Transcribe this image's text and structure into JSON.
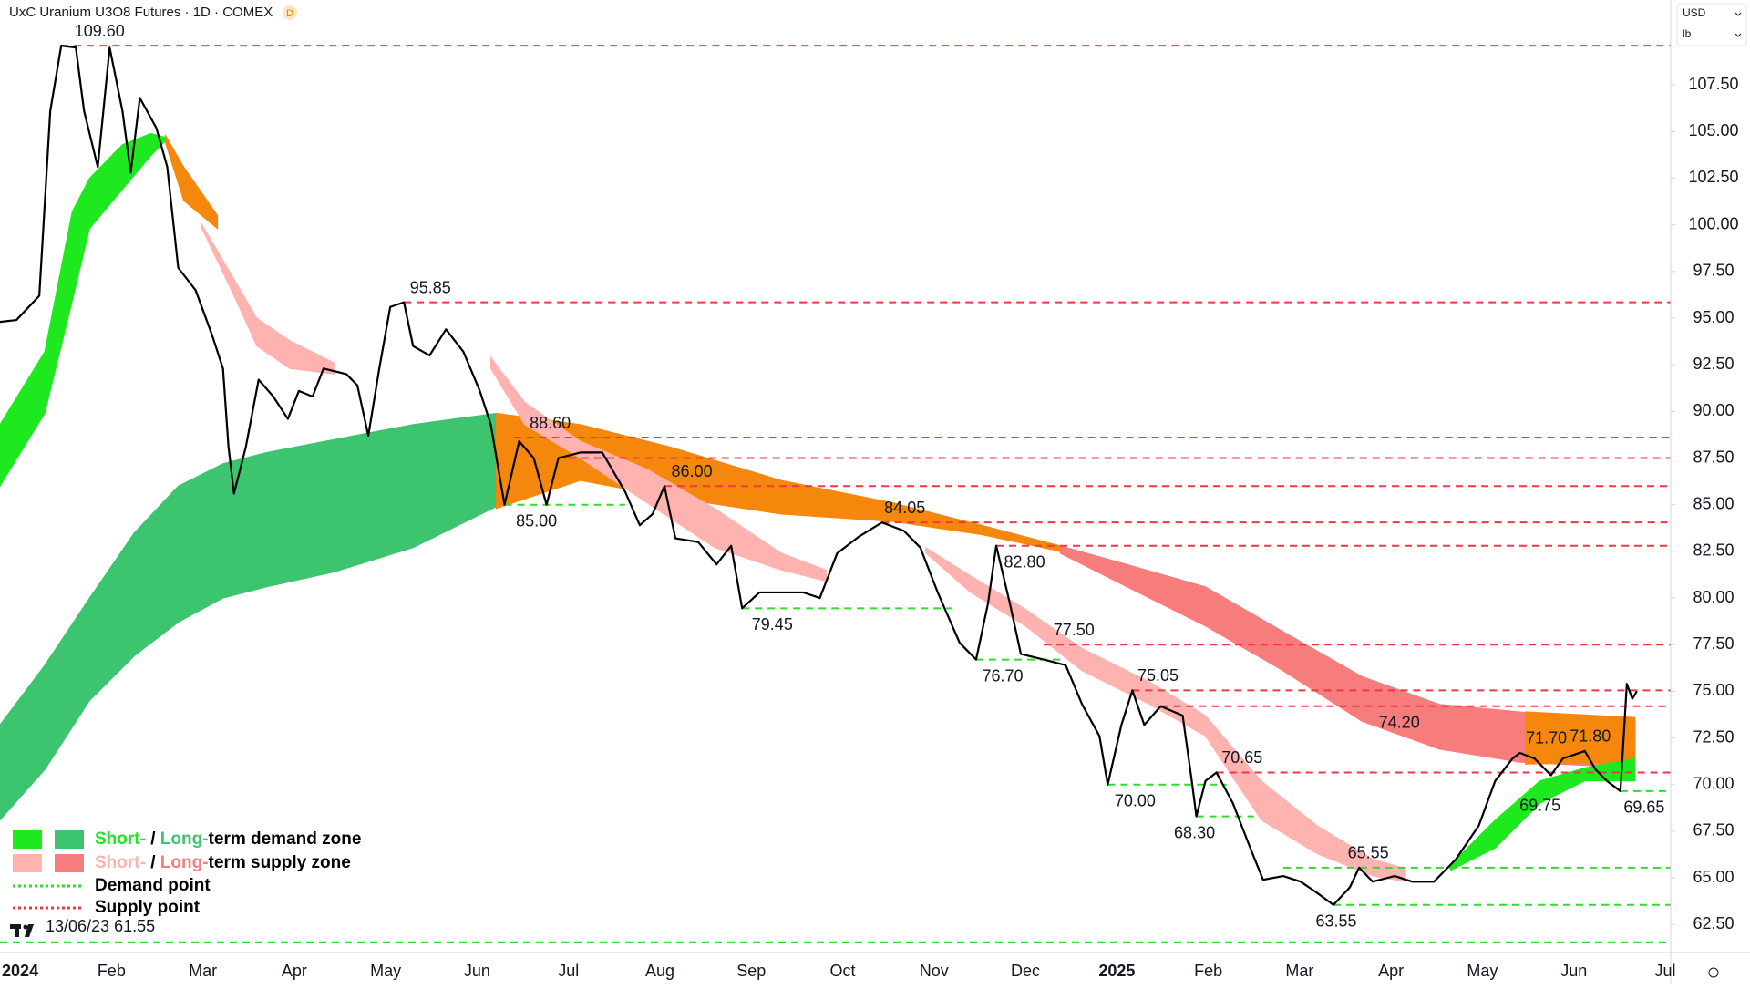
{
  "chart_data": {
    "type": "line",
    "title": "UxC Uranium U3O8 Futures · 1D · COMEX",
    "badge": "D",
    "currency": "USD",
    "unit": "lb",
    "xlim": [
      -0.22,
      18.06
    ],
    "xticks": [
      {
        "value": 0,
        "label": "2024"
      },
      {
        "value": 1,
        "label": "Feb"
      },
      {
        "value": 2,
        "label": "Mar"
      },
      {
        "value": 3,
        "label": "Apr"
      },
      {
        "value": 4,
        "label": "May"
      },
      {
        "value": 5,
        "label": "Jun"
      },
      {
        "value": 6,
        "label": "Jul"
      },
      {
        "value": 7,
        "label": "Aug"
      },
      {
        "value": 8,
        "label": "Sep"
      },
      {
        "value": 9,
        "label": "Oct"
      },
      {
        "value": 10,
        "label": "Nov"
      },
      {
        "value": 11,
        "label": "Dec"
      },
      {
        "value": 12,
        "label": "2025"
      },
      {
        "value": 13,
        "label": "Feb"
      },
      {
        "value": 14,
        "label": "Mar"
      },
      {
        "value": 15,
        "label": "Apr"
      },
      {
        "value": 16,
        "label": "May"
      },
      {
        "value": 17,
        "label": "Jun"
      },
      {
        "value": 18,
        "label": "Jul"
      }
    ],
    "ylim": [
      61.0,
      112.05
    ],
    "yticks": [
      {
        "value": 62.5,
        "label": "62.50"
      },
      {
        "value": 65,
        "label": "65.00"
      },
      {
        "value": 67.5,
        "label": "67.50"
      },
      {
        "value": 70,
        "label": "70.00"
      },
      {
        "value": 72.5,
        "label": "72.50"
      },
      {
        "value": 75,
        "label": "75.00"
      },
      {
        "value": 77.5,
        "label": "77.50"
      },
      {
        "value": 80,
        "label": "80.00"
      },
      {
        "value": 82.5,
        "label": "82.50"
      },
      {
        "value": 85,
        "label": "85.00"
      },
      {
        "value": 87.5,
        "label": "87.50"
      },
      {
        "value": 90,
        "label": "90.00"
      },
      {
        "value": 92.5,
        "label": "92.50"
      },
      {
        "value": 95,
        "label": "95.00"
      },
      {
        "value": 97.5,
        "label": "97.50"
      },
      {
        "value": 100,
        "label": "100.00"
      },
      {
        "value": 102.5,
        "label": "102.50"
      },
      {
        "value": 105,
        "label": "105.00"
      },
      {
        "value": 107.5,
        "label": "107.50"
      }
    ],
    "series": [
      {
        "color": "#000000",
        "x": [
          -0.22,
          -0.04,
          0.21,
          0.33,
          0.45,
          0.61,
          0.7,
          0.85,
          0.98,
          1.12,
          1.21,
          1.31,
          1.49,
          1.61,
          1.73,
          1.92,
          2.1,
          2.22,
          2.28,
          2.34,
          2.47,
          2.61,
          2.77,
          2.93,
          3.05,
          3.2,
          3.32,
          3.57,
          3.69,
          3.81,
          3.93,
          4.05,
          4.2,
          4.3,
          4.48,
          4.66,
          4.85,
          5.03,
          5.15,
          5.3,
          5.46,
          5.62,
          5.76,
          5.89,
          6.13,
          6.37,
          6.62,
          6.78,
          6.92,
          7.05,
          7.17,
          7.42,
          7.62,
          7.78,
          7.9,
          8.09,
          8.33,
          8.57,
          8.75,
          8.94,
          9.18,
          9.43,
          9.67,
          9.85,
          10.04,
          10.28,
          10.46,
          10.59,
          10.68,
          10.83,
          10.95,
          11.2,
          11.44,
          11.62,
          11.81,
          11.9,
          12.05,
          12.17,
          12.3,
          12.48,
          12.72,
          12.82,
          12.87,
          12.97,
          13.09,
          13.27,
          13.46,
          13.6,
          13.82,
          14.01,
          14.19,
          14.37,
          14.55,
          14.65,
          14.8,
          15.04,
          15.23,
          15.47,
          15.71,
          15.96,
          16.14,
          16.33,
          16.41,
          16.57,
          16.75,
          16.88,
          17.12,
          17.24,
          17.36,
          17.51,
          17.58,
          17.64,
          17.69
        ],
        "values": [
          94.8,
          94.9,
          96.2,
          106.1,
          109.6,
          109.5,
          106.1,
          103.1,
          109.5,
          106.1,
          102.8,
          106.8,
          105.2,
          103.1,
          97.7,
          96.5,
          94.1,
          92.3,
          88.1,
          85.6,
          88.1,
          91.7,
          90.8,
          89.6,
          91.1,
          90.8,
          92.3,
          92.0,
          91.4,
          88.7,
          92.3,
          95.6,
          95.85,
          93.5,
          93.0,
          94.4,
          93.2,
          91.1,
          89.3,
          85.0,
          88.4,
          87.5,
          85.0,
          87.5,
          87.8,
          87.8,
          85.7,
          83.9,
          84.5,
          86.0,
          83.2,
          83.0,
          81.8,
          82.8,
          79.45,
          80.3,
          80.3,
          80.3,
          80.0,
          82.4,
          83.3,
          84.05,
          83.6,
          82.7,
          80.3,
          77.6,
          76.7,
          79.7,
          82.8,
          79.7,
          77.0,
          76.7,
          76.4,
          74.3,
          72.6,
          70.0,
          73.2,
          75.05,
          73.2,
          74.2,
          73.7,
          70.2,
          68.3,
          70.2,
          70.65,
          69.0,
          66.6,
          64.9,
          65.1,
          64.8,
          64.2,
          63.55,
          64.5,
          65.55,
          64.8,
          65.1,
          64.8,
          64.8,
          66.0,
          67.8,
          70.2,
          71.4,
          71.7,
          71.4,
          70.5,
          71.4,
          71.8,
          70.8,
          70.2,
          69.65,
          75.4,
          74.6,
          75.0
        ]
      }
    ],
    "zones": [
      {
        "color": "#3dc46f",
        "x": [
          -0.22,
          0.27,
          0.76,
          1.25,
          1.73,
          2.22,
          2.7,
          3.44,
          4.3,
          5.21
        ],
        "upper": [
          73.2,
          76.4,
          80.0,
          83.5,
          86.0,
          87.2,
          87.8,
          88.5,
          89.3,
          89.9
        ],
        "lower": [
          68.1,
          70.8,
          74.5,
          76.9,
          78.7,
          80.0,
          80.6,
          81.4,
          82.7,
          84.9
        ]
      },
      {
        "color": "#f77c7c",
        "x": [
          11.38,
          12.11,
          12.97,
          13.82,
          14.68,
          15.53,
          16.41,
          17.67
        ],
        "upper": [
          82.8,
          81.8,
          80.6,
          78.2,
          75.8,
          74.3,
          73.9,
          73.4
        ],
        "lower": [
          82.4,
          80.6,
          78.5,
          76.1,
          73.4,
          71.9,
          71.2,
          70.9
        ]
      },
      {
        "color": "#f5880c",
        "x": [
          5.21,
          6.13,
          7.11,
          8.33,
          9.55,
          10.52,
          11.38
        ],
        "upper": [
          89.9,
          89.3,
          88.1,
          86.3,
          85.1,
          83.9,
          82.8
        ],
        "lower": [
          84.8,
          86.3,
          85.4,
          84.5,
          84.1,
          83.4,
          82.5
        ]
      },
      {
        "color": "#f5880c",
        "x": [
          16.47,
          17.67
        ],
        "upper": [
          73.9,
          73.6
        ],
        "lower": [
          71.1,
          71.2
        ]
      },
      {
        "color": "#f5880c",
        "x": [
          1.59,
          1.79,
          2.16
        ],
        "upper": [
          104.8,
          103.1,
          100.5
        ],
        "lower": [
          104.4,
          101.3,
          99.8
        ]
      },
      {
        "color": "#ffb3b0",
        "x": [
          1.98,
          2.34,
          2.59,
          2.95,
          3.44
        ],
        "upper": [
          100.1,
          97.1,
          95.0,
          93.8,
          92.6
        ],
        "lower": [
          99.9,
          96.2,
          93.5,
          92.3,
          92.0
        ]
      },
      {
        "color": "#ffb3b0",
        "x": [
          5.15,
          5.52,
          6.13,
          6.86,
          7.6,
          8.33,
          8.82
        ],
        "upper": [
          92.9,
          90.5,
          88.4,
          86.9,
          84.8,
          82.4,
          81.5
        ],
        "lower": [
          92.3,
          89.3,
          87.5,
          85.1,
          82.7,
          81.5,
          80.9
        ]
      },
      {
        "color": "#ffb3b0",
        "x": [
          9.91,
          10.4,
          11.0,
          11.62,
          12.36,
          12.97,
          13.58,
          14.19,
          14.8,
          15.16
        ],
        "upper": [
          82.7,
          81.2,
          79.4,
          77.3,
          75.5,
          73.7,
          70.2,
          67.8,
          66.0,
          65.5
        ],
        "lower": [
          82.4,
          80.3,
          78.5,
          76.1,
          74.3,
          72.6,
          68.1,
          66.3,
          65.1,
          64.8
        ]
      },
      {
        "color": "#1ee81e",
        "x": [
          -0.22,
          0.27,
          0.57,
          0.76,
          1.12,
          1.43,
          1.59
        ],
        "upper": [
          89.3,
          93.2,
          100.7,
          102.5,
          104.3,
          104.9,
          104.7
        ],
        "lower": [
          86.0,
          89.9,
          95.9,
          99.8,
          101.9,
          103.7,
          104.5
        ]
      },
      {
        "color": "#1ee81e",
        "x": [
          15.65,
          16.14,
          16.63,
          17.12,
          17.67
        ],
        "upper": [
          65.7,
          68.1,
          70.2,
          70.9,
          71.4
        ],
        "lower": [
          65.4,
          66.6,
          69.0,
          70.2,
          70.2
        ]
      }
    ],
    "supply_color": "#f23645",
    "demand_color": "#2fdc2f",
    "levels": [
      {
        "kind": "supply",
        "value": 109.6,
        "label": "109.60",
        "x_start": 0.45,
        "label_x": 0.87,
        "label_pos": "above"
      },
      {
        "kind": "supply",
        "value": 95.85,
        "label": "95.85",
        "x_start": 4.2,
        "label_x": 4.49,
        "label_pos": "above"
      },
      {
        "kind": "supply",
        "value": 88.6,
        "label": "88.60",
        "x_start": 5.4,
        "label_x": 5.8,
        "label_pos": "above"
      },
      {
        "kind": "supply",
        "value": 87.5,
        "x_start": 6.0
      },
      {
        "kind": "supply",
        "value": 86.0,
        "label": "86.00",
        "x_start": 7.05,
        "label_x": 7.35,
        "label_pos": "above"
      },
      {
        "kind": "supply",
        "value": 84.05,
        "label": "84.05",
        "x_start": 9.43,
        "label_x": 9.68,
        "label_pos": "above"
      },
      {
        "kind": "supply",
        "value": 82.8,
        "label": "82.80",
        "x_start": 10.68,
        "label_x": 10.99,
        "label_pos": "below"
      },
      {
        "kind": "supply",
        "value": 77.5,
        "label": "77.50",
        "x_start": 11.2,
        "label_x": 11.53,
        "label_pos": "above"
      },
      {
        "kind": "supply",
        "value": 75.05,
        "label": "75.05",
        "x_start": 12.17,
        "label_x": 12.45,
        "label_pos": "above"
      },
      {
        "kind": "supply",
        "value": 74.2,
        "label": "74.20",
        "x_start": 12.48,
        "label_x": 15.09,
        "label_pos": "below"
      },
      {
        "kind": "supply",
        "value": 70.65,
        "label": "70.65",
        "x_start": 13.09,
        "label_x": 13.37,
        "label_pos": "above"
      },
      {
        "kind": "supply",
        "value": 71.7,
        "label": "71.70",
        "label_x": 16.7,
        "label_pos": "above"
      },
      {
        "kind": "supply",
        "value": 71.8,
        "label": "71.80",
        "label_x": 17.18,
        "label_pos": "above"
      },
      {
        "kind": "demand",
        "value": 85.0,
        "label": "85.00",
        "x_start": 5.3,
        "x_end": 6.62,
        "label_x": 5.65,
        "label_pos": "below"
      },
      {
        "kind": "demand",
        "value": 79.45,
        "label": "79.45",
        "x_start": 7.9,
        "x_end": 10.2,
        "label_x": 8.23,
        "label_pos": "below"
      },
      {
        "kind": "demand",
        "value": 76.7,
        "label": "76.70",
        "x_start": 10.46,
        "x_end": 11.4,
        "label_x": 10.75,
        "label_pos": "below"
      },
      {
        "kind": "demand",
        "value": 70.0,
        "label": "70.00",
        "x_start": 11.9,
        "x_end": 13.2,
        "label_x": 12.2,
        "label_pos": "below"
      },
      {
        "kind": "demand",
        "value": 68.3,
        "label": "68.30",
        "x_start": 12.87,
        "x_end": 13.5,
        "label_x": 12.85,
        "label_pos": "below"
      },
      {
        "kind": "demand",
        "value": 65.55,
        "label": "65.55",
        "x_start": 13.82,
        "label_x": 14.75,
        "label_pos": "above"
      },
      {
        "kind": "demand",
        "value": 63.55,
        "label": "63.55",
        "x_start": 14.37,
        "label_x": 14.4,
        "label_pos": "below"
      },
      {
        "kind": "demand",
        "value": 69.75,
        "label": "69.75",
        "label_x": 16.63,
        "label_pos": "below"
      },
      {
        "kind": "demand",
        "value": 69.65,
        "label": "69.65",
        "x_start": 17.51,
        "label_x": 17.77,
        "label_pos": "below"
      },
      {
        "kind": "demand",
        "value": 61.55,
        "x_start": -0.22
      }
    ],
    "legend": {
      "rows": [
        {
          "swatches": [
            "#1ee81e",
            "#3dc46f"
          ],
          "parts": [
            {
              "text": "Short-",
              "color": "#1ee81e"
            },
            {
              "text": " / ",
              "color": "#000000"
            },
            {
              "text": "Long-",
              "color": "#3dc46f"
            },
            {
              "text": "term demand zone",
              "color": "#000000"
            }
          ]
        },
        {
          "swatches": [
            "#ffb3b0",
            "#f77c7c"
          ],
          "parts": [
            {
              "text": "Short-",
              "color": "#ffb3b0"
            },
            {
              "text": " / ",
              "color": "#000000"
            },
            {
              "text": "Long-",
              "color": "#f77c7c"
            },
            {
              "text": "term supply zone",
              "color": "#000000"
            }
          ]
        },
        {
          "dotted": "#2fdc2f",
          "parts": [
            {
              "text": "Demand point",
              "color": "#000000"
            }
          ]
        },
        {
          "dotted": "#f23645",
          "parts": [
            {
              "text": "Supply point",
              "color": "#000000"
            }
          ]
        }
      ],
      "note": "13/06/23 61.55"
    }
  }
}
